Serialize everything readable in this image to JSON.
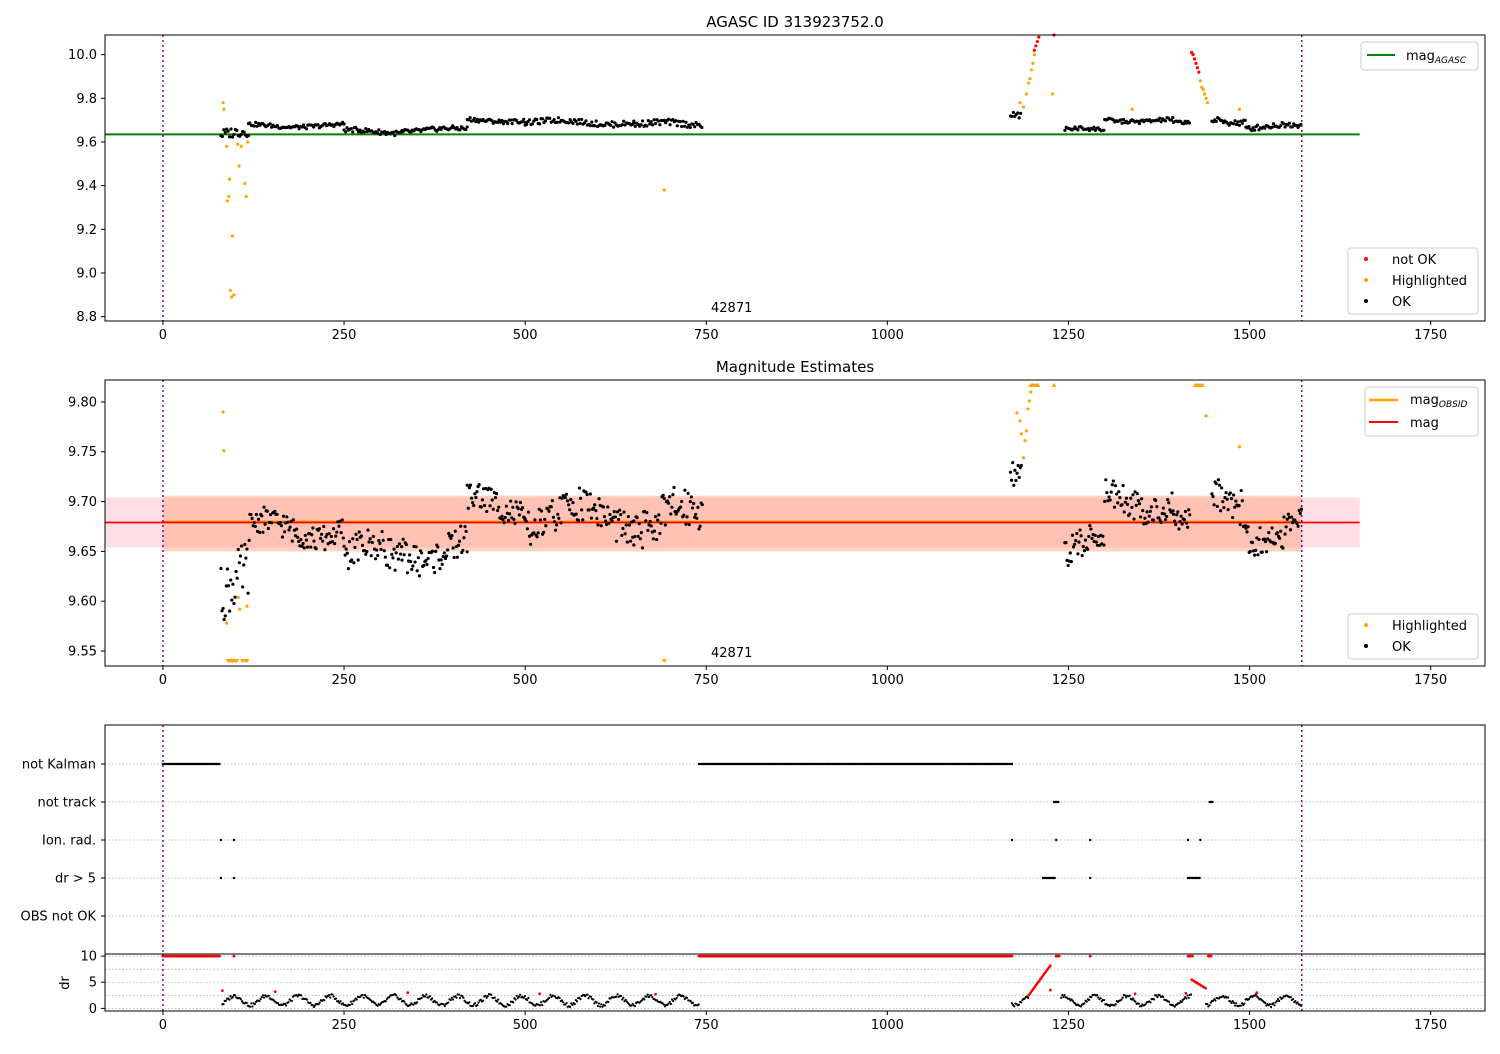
{
  "chart_data": [
    {
      "type": "scatter",
      "title": "AGASC ID 313923752.0",
      "xlim": [
        -80,
        1825
      ],
      "ylim": [
        8.78,
        10.09
      ],
      "xticks": [
        "0",
        "250",
        "500",
        "750",
        "1000",
        "1250",
        "1500",
        "1750"
      ],
      "xtick_values": [
        0,
        250,
        500,
        750,
        1000,
        1250,
        1500,
        1750
      ],
      "yticks": [
        "8.8",
        "9.0",
        "9.2",
        "9.4",
        "9.6",
        "9.8",
        "10.0"
      ],
      "ytick_values": [
        8.8,
        9.0,
        9.2,
        9.4,
        9.6,
        9.8,
        10.0
      ],
      "annotation": {
        "text": "42871",
        "x": 750,
        "y": 8.83
      },
      "vlines": [
        0,
        1572
      ],
      "hline": {
        "name": "mag_{AGASC}",
        "label_base": "mag",
        "label_sub": "AGASC",
        "y": 9.635,
        "x_range": [
          -80,
          1652
        ],
        "color": "#008000"
      },
      "legend_lines": {
        "position": "upper right"
      },
      "legend_points": {
        "position": "lower right",
        "entries": [
          "not OK",
          "Highlighted",
          "OK"
        ]
      },
      "series": [
        {
          "name": "not OK",
          "color": "#ff0000",
          "points": [
            [
              1203,
              10.02
            ],
            [
              1205,
              10.04
            ],
            [
              1207,
              10.06
            ],
            [
              1209,
              10.08
            ],
            [
              1230,
              10.09
            ],
            [
              1420,
              10.01
            ],
            [
              1422,
              10.0
            ],
            [
              1424,
              9.98
            ],
            [
              1426,
              9.96
            ],
            [
              1428,
              9.94
            ],
            [
              1430,
              9.92
            ]
          ]
        },
        {
          "name": "Highlighted",
          "color": "#ffa500",
          "points": [
            [
              83,
              9.78
            ],
            [
              84,
              9.75
            ],
            [
              88,
              9.58
            ],
            [
              89,
              9.33
            ],
            [
              91,
              9.35
            ],
            [
              92,
              9.43
            ],
            [
              93,
              8.92
            ],
            [
              95,
              8.89
            ],
            [
              96,
              9.17
            ],
            [
              98,
              8.9
            ],
            [
              103,
              9.59
            ],
            [
              105,
              9.49
            ],
            [
              108,
              9.58
            ],
            [
              113,
              9.41
            ],
            [
              115,
              9.35
            ],
            [
              117,
              9.6
            ],
            [
              692,
              9.38
            ],
            [
              1183,
              9.78
            ],
            [
              1188,
              9.76
            ],
            [
              1192,
              9.82
            ],
            [
              1195,
              9.87
            ],
            [
              1197,
              9.89
            ],
            [
              1199,
              9.93
            ],
            [
              1201,
              9.96
            ],
            [
              1203,
              10.0
            ],
            [
              1228,
              9.82
            ],
            [
              1338,
              9.75
            ],
            [
              1432,
              9.88
            ],
            [
              1434,
              9.85
            ],
            [
              1436,
              9.84
            ],
            [
              1438,
              9.82
            ],
            [
              1440,
              9.8
            ],
            [
              1442,
              9.78
            ],
            [
              1486,
              9.75
            ]
          ]
        },
        {
          "name": "OK",
          "color": "#000000",
          "segments": [
            {
              "x0": 80,
              "x1": 118,
              "step": 2,
              "base": 9.63,
              "amp": 0.03
            },
            {
              "x0": 118,
              "x1": 250,
              "step": 2,
              "base": 9.675,
              "amp": 0.012
            },
            {
              "x0": 250,
              "x1": 330,
              "step": 2,
              "base": 9.648,
              "amp": 0.014
            },
            {
              "x0": 330,
              "x1": 420,
              "step": 2,
              "base": 9.655,
              "amp": 0.014
            },
            {
              "x0": 420,
              "x1": 500,
              "step": 2,
              "base": 9.7,
              "amp": 0.012
            },
            {
              "x0": 500,
              "x1": 650,
              "step": 2,
              "base": 9.69,
              "amp": 0.016
            },
            {
              "x0": 650,
              "x1": 745,
              "step": 2,
              "base": 9.68,
              "amp": 0.018
            },
            {
              "x0": 1170,
              "x1": 1185,
              "step": 2,
              "base": 9.73,
              "amp": 0.018
            },
            {
              "x0": 1245,
              "x1": 1300,
              "step": 2,
              "base": 9.655,
              "amp": 0.012
            },
            {
              "x0": 1300,
              "x1": 1395,
              "step": 2,
              "base": 9.7,
              "amp": 0.012
            },
            {
              "x0": 1395,
              "x1": 1418,
              "step": 2,
              "base": 9.685,
              "amp": 0.01
            },
            {
              "x0": 1448,
              "x1": 1495,
              "step": 2,
              "base": 9.7,
              "amp": 0.02
            },
            {
              "x0": 1495,
              "x1": 1572,
              "step": 2,
              "base": 9.67,
              "amp": 0.016
            }
          ]
        }
      ]
    },
    {
      "type": "scatter",
      "title": "Magnitude Estimates",
      "xlim": [
        -80,
        1825
      ],
      "ylim": [
        9.535,
        9.822
      ],
      "xticks": [
        "0",
        "250",
        "500",
        "750",
        "1000",
        "1250",
        "1500",
        "1750"
      ],
      "xtick_values": [
        0,
        250,
        500,
        750,
        1000,
        1250,
        1500,
        1750
      ],
      "yticks": [
        "9.55",
        "9.60",
        "9.65",
        "9.70",
        "9.75",
        "9.80"
      ],
      "ytick_values": [
        9.55,
        9.6,
        9.65,
        9.7,
        9.75,
        9.8
      ],
      "annotation": {
        "text": "42871",
        "x": 750,
        "y": 9.541
      },
      "vlines": [
        0,
        1572
      ],
      "mag": {
        "name": "mag",
        "y": 9.679,
        "color": "#ff0000",
        "x_range": [
          -80,
          1652
        ],
        "band": [
          9.654,
          9.704
        ],
        "band_color": "#ffc0cb"
      },
      "mag_obsid": {
        "name": "mag_{OBSID}",
        "label_base": "mag",
        "label_sub": "OBSID",
        "y": 9.68,
        "x_range": [
          0,
          1572
        ],
        "band": [
          9.65,
          9.706
        ],
        "color": "#ffa500"
      },
      "legend_lines": {
        "position": "upper right"
      },
      "legend_points": {
        "position": "lower right",
        "entries": [
          "Highlighted",
          "OK"
        ]
      },
      "series": [
        {
          "name": "Highlighted",
          "color": "#ffa500",
          "points": [
            [
              83,
              9.79
            ],
            [
              84,
              9.751
            ],
            [
              88,
              9.578
            ],
            [
              104,
              9.604
            ],
            [
              106,
              9.592
            ],
            [
              116,
              9.595
            ],
            [
              1179,
              9.789
            ],
            [
              1183,
              9.781
            ],
            [
              1185,
              9.768
            ],
            [
              1188,
              9.744
            ],
            [
              1190,
              9.761
            ],
            [
              1192,
              9.771
            ],
            [
              1194,
              9.793
            ],
            [
              1196,
              9.801
            ],
            [
              1198,
              9.81
            ],
            [
              1486,
              9.755
            ],
            [
              1440,
              9.786
            ]
          ],
          "clipped_bottom": [
            90,
            92,
            94,
            96,
            98,
            100,
            102,
            110,
            114,
            116,
            692
          ],
          "clipped_top": [
            1198,
            1200,
            1202,
            1204,
            1206,
            1208,
            1230,
            1425,
            1427,
            1429,
            1431,
            1433,
            1435
          ]
        },
        {
          "name": "OK",
          "color": "#000000",
          "segments": [
            {
              "x0": 80,
              "x1": 120,
              "step": 1.5,
              "base": 9.625,
              "amp": 0.035
            },
            {
              "x0": 120,
              "x1": 250,
              "step": 1.5,
              "base": 9.672,
              "amp": 0.016
            },
            {
              "x0": 250,
              "x1": 330,
              "step": 1.5,
              "base": 9.645,
              "amp": 0.02
            },
            {
              "x0": 330,
              "x1": 420,
              "step": 1.5,
              "base": 9.652,
              "amp": 0.02
            },
            {
              "x0": 420,
              "x1": 500,
              "step": 1.5,
              "base": 9.695,
              "amp": 0.018
            },
            {
              "x0": 500,
              "x1": 650,
              "step": 1.5,
              "base": 9.685,
              "amp": 0.022
            },
            {
              "x0": 650,
              "x1": 745,
              "step": 1.5,
              "base": 9.682,
              "amp": 0.025
            },
            {
              "x0": 1170,
              "x1": 1185,
              "step": 1.5,
              "base": 9.72,
              "amp": 0.025
            },
            {
              "x0": 1245,
              "x1": 1300,
              "step": 1.5,
              "base": 9.655,
              "amp": 0.018
            },
            {
              "x0": 1300,
              "x1": 1395,
              "step": 1.5,
              "base": 9.7,
              "amp": 0.018
            },
            {
              "x0": 1395,
              "x1": 1418,
              "step": 1.5,
              "base": 9.68,
              "amp": 0.015
            },
            {
              "x0": 1448,
              "x1": 1495,
              "step": 1.5,
              "base": 9.7,
              "amp": 0.025
            },
            {
              "x0": 1495,
              "x1": 1572,
              "step": 1.5,
              "base": 9.67,
              "amp": 0.02
            }
          ]
        }
      ]
    },
    {
      "type": "scatter",
      "title": "",
      "xlim": [
        -80,
        1825
      ],
      "vlines": [
        0,
        1572
      ],
      "flags": {
        "rows": [
          "not Kalman",
          "not track",
          "Ion. rad.",
          "dr > 5",
          "OBS not OK"
        ],
        "intervals": {
          "not Kalman": [
            [
              0,
              78
            ],
            [
              740,
              1172
            ]
          ],
          "not track": [
            [
              1230,
              1236
            ],
            [
              1445,
              1450
            ]
          ],
          "Ion. rad.": [
            [
              80,
              80
            ],
            [
              98,
              98
            ],
            [
              1172,
              1172
            ],
            [
              1233,
              1233
            ],
            [
              1280,
              1280
            ],
            [
              1415,
              1415
            ],
            [
              1432,
              1432
            ]
          ],
          "dr > 5": [
            [
              80,
              80
            ],
            [
              98,
              98
            ],
            [
              1215,
              1232
            ],
            [
              1280,
              1280
            ],
            [
              1415,
              1432
            ]
          ],
          "OBS not OK": []
        }
      },
      "dr": {
        "ylabel": "dr",
        "ylim": [
          -0.5,
          10.4
        ],
        "yticks": [
          "0",
          "5",
          "10"
        ],
        "ytick_values": [
          0,
          5,
          10
        ],
        "grid_values": [
          2.5,
          7.5
        ],
        "red_segments": [
          [
            0,
            78
          ],
          [
            740,
            1172
          ],
          [
            1233,
            1237
          ],
          [
            1415,
            1422
          ],
          [
            1443,
            1448
          ]
        ],
        "red_points": [
          [
            98,
            10
          ],
          [
            1280,
            10
          ],
          [
            82,
            3.4
          ],
          [
            155,
            3.2
          ],
          [
            338,
            3.0
          ],
          [
            520,
            2.8
          ],
          [
            680,
            2.7
          ],
          [
            1342,
            2.8
          ],
          [
            1412,
            2.9
          ],
          [
            1510,
            3.0
          ],
          [
            1225,
            3.5
          ]
        ],
        "red_ramps": [
          [
            1195,
            1225,
            2.5,
            8.2
          ],
          [
            1420,
            1440,
            5.5,
            3.8
          ]
        ],
        "black_ranges": [
          [
            82,
            745
          ],
          [
            1172,
            1195
          ],
          [
            1240,
            1420
          ],
          [
            1440,
            1572
          ]
        ]
      }
    }
  ]
}
